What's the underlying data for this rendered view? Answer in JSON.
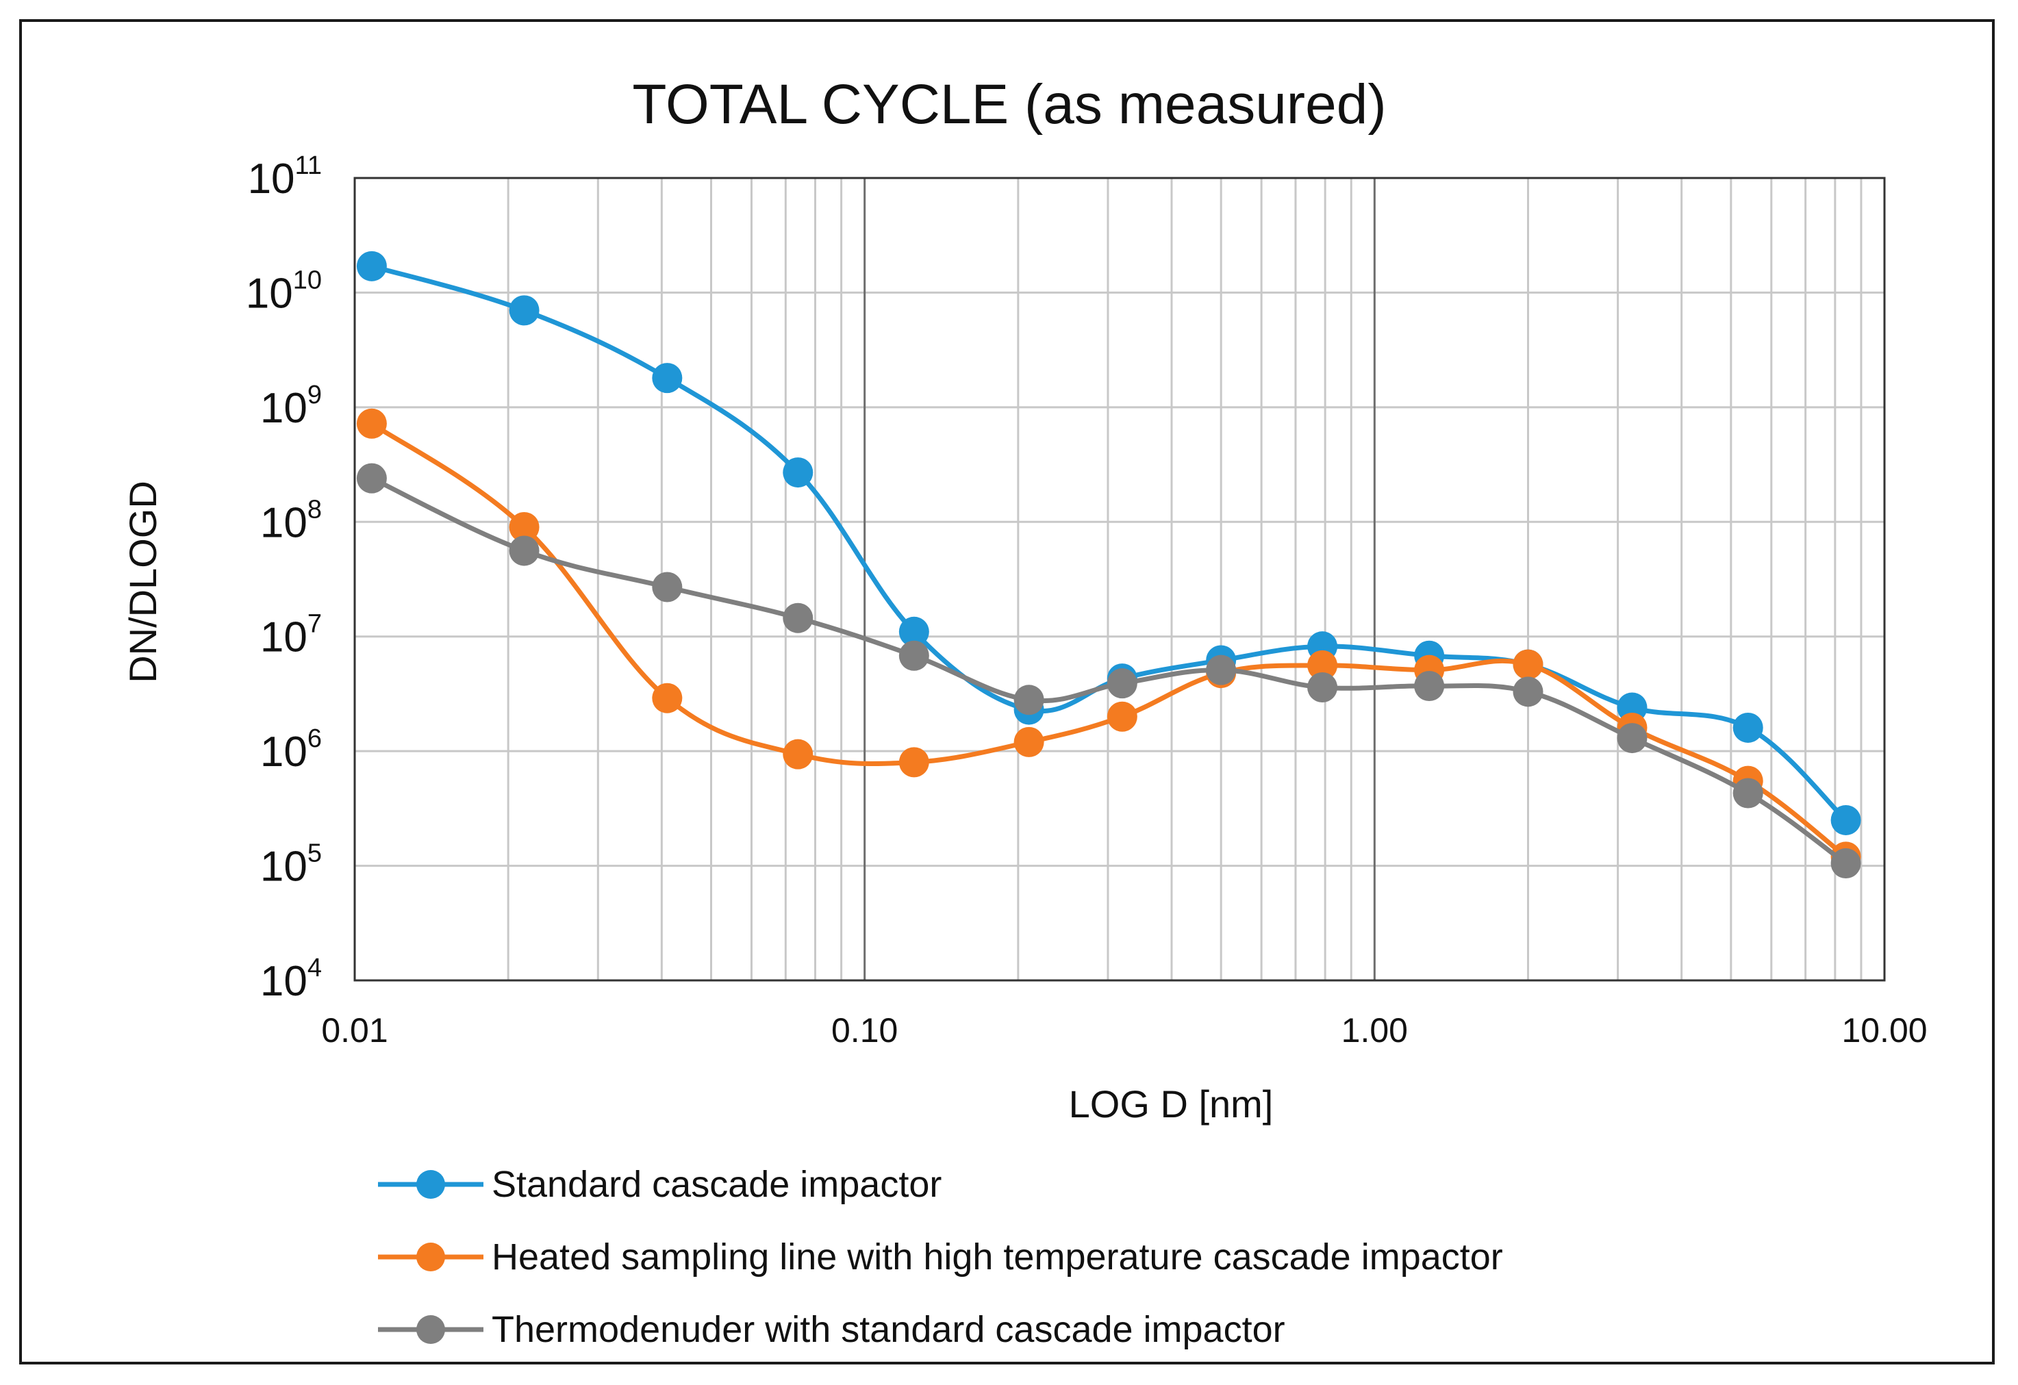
{
  "chart_data": {
    "type": "line",
    "title": "TOTAL CYCLE (as measured)",
    "xlabel": "LOG D [nm]",
    "ylabel": "DN/DLOGD",
    "xscale": "log",
    "yscale": "log",
    "xlim": [
      0.01,
      10
    ],
    "ylim": [
      10000,
      100000000000
    ],
    "x_ticks": [
      {
        "value": 0.01,
        "label": "0.01"
      },
      {
        "value": 0.1,
        "label": "0.10"
      },
      {
        "value": 1,
        "label": "1.00"
      },
      {
        "value": 10,
        "label": "10.00"
      }
    ],
    "y_ticks": [
      {
        "value": 10000,
        "base": "10",
        "exp": "4"
      },
      {
        "value": 100000,
        "base": "10",
        "exp": "5"
      },
      {
        "value": 1000000,
        "base": "10",
        "exp": "6"
      },
      {
        "value": 10000000,
        "base": "10",
        "exp": "7"
      },
      {
        "value": 100000000,
        "base": "10",
        "exp": "8"
      },
      {
        "value": 1000000000,
        "base": "10",
        "exp": "9"
      },
      {
        "value": 10000000000,
        "base": "10",
        "exp": "10"
      },
      {
        "value": 100000000000,
        "base": "10",
        "exp": "11"
      }
    ],
    "grid": true,
    "legend_position": "bottom",
    "x": [
      0.0108,
      0.0215,
      0.041,
      0.074,
      0.125,
      0.21,
      0.32,
      0.5,
      0.79,
      1.28,
      2.0,
      3.2,
      5.4,
      8.4
    ],
    "series": [
      {
        "name": "Standard cascade impactor",
        "color": "#1f96d6",
        "values": [
          17000000000,
          7000000000,
          1800000000,
          270000000,
          11000000,
          2300000,
          4300000,
          6200000,
          8200000,
          6800000,
          5700000,
          2400000,
          1600000,
          250000
        ]
      },
      {
        "name": "Heated sampling line with high temperature cascade impactor",
        "color": "#f47b20",
        "values": [
          720000000,
          90000000,
          2900000,
          940000,
          800000,
          1200000,
          2000000,
          4800000,
          5600000,
          5100000,
          5700000,
          1600000,
          550000,
          120000
        ]
      },
      {
        "name": "Thermodenuder with standard cascade impactor",
        "color": "#7f7f7f",
        "values": [
          240000000,
          56000000,
          27000000,
          14500000,
          6800000,
          2800000,
          3900000,
          5100000,
          3600000,
          3700000,
          3300000,
          1300000,
          430000,
          105000
        ]
      }
    ]
  }
}
